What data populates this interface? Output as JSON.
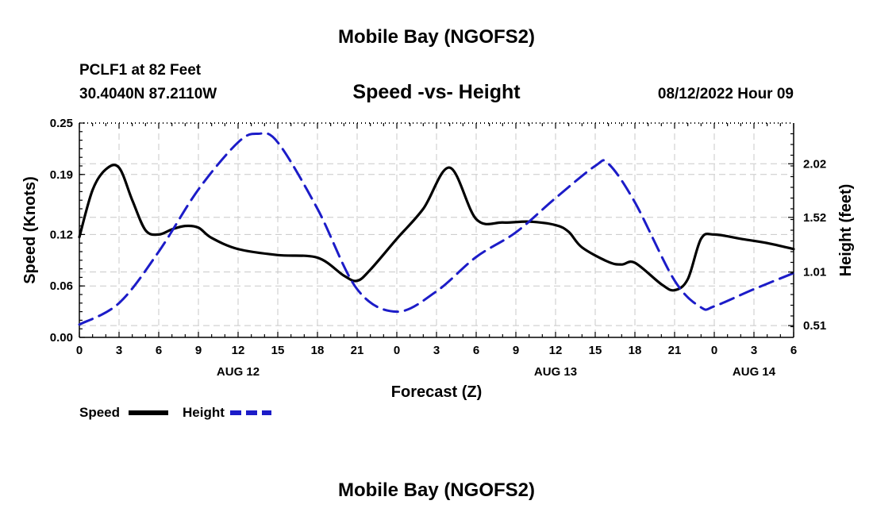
{
  "header": {
    "title_top": "Mobile Bay (NGOFS2)",
    "station": "PCLF1 at 82 Feet",
    "coords": "30.4040N  87.2110W",
    "chart_title": "Speed -vs- Height",
    "timestamp": "08/12/2022 Hour 09",
    "title_bottom": "Mobile Bay (NGOFS2)"
  },
  "legend": {
    "speed_label": "Speed",
    "height_label": "Height",
    "speed_color": "#000000",
    "height_color": "#1c1cc8"
  },
  "chart_data": {
    "type": "line",
    "title": "Speed -vs- Height",
    "xlabel": "Forecast (Z)",
    "ylabel": "Speed (Knots)",
    "y2label": "Height (feet)",
    "x_range_hours": [
      0,
      54
    ],
    "x_tick_hours": [
      0,
      3,
      6,
      9,
      12,
      15,
      18,
      21,
      24,
      27,
      30,
      33,
      36,
      39,
      42,
      45,
      48,
      51,
      54
    ],
    "x_tick_labels": [
      "0",
      "3",
      "6",
      "9",
      "12",
      "15",
      "18",
      "21",
      "0",
      "3",
      "6",
      "9",
      "12",
      "15",
      "18",
      "21",
      "0",
      "3",
      "6"
    ],
    "date_labels": [
      {
        "hour": 12,
        "label": "AUG 12"
      },
      {
        "hour": 36,
        "label": "AUG 13"
      },
      {
        "hour": 51,
        "label": "AUG 14"
      }
    ],
    "ylim": [
      0,
      0.25
    ],
    "y_ticks": [
      0.0,
      0.06,
      0.12,
      0.19,
      0.25
    ],
    "y_tick_labels": [
      "0.00",
      "0.06",
      "0.12",
      "0.19",
      "0.25"
    ],
    "y2lim": [
      0.4,
      2.4
    ],
    "y2_ticks": [
      0.51,
      1.01,
      1.52,
      2.02
    ],
    "y2_tick_labels": [
      "0.51",
      "1.01",
      "1.52",
      "2.02"
    ],
    "grid": true,
    "legend_position": "bottom-left",
    "series": [
      {
        "name": "Speed",
        "axis": "left",
        "color": "#000000",
        "style": "solid",
        "x": [
          0,
          1,
          2,
          3,
          4,
          5,
          6,
          7,
          8,
          9,
          10,
          12,
          15,
          18,
          20,
          21,
          22,
          24,
          26,
          28,
          30,
          32,
          34,
          36,
          37,
          38,
          40,
          41,
          42,
          44,
          45,
          46,
          47,
          48,
          50,
          52,
          54
        ],
        "values": [
          0.117,
          0.172,
          0.196,
          0.198,
          0.16,
          0.125,
          0.12,
          0.126,
          0.13,
          0.128,
          0.116,
          0.103,
          0.096,
          0.093,
          0.072,
          0.066,
          0.079,
          0.115,
          0.15,
          0.198,
          0.138,
          0.134,
          0.135,
          0.131,
          0.123,
          0.105,
          0.088,
          0.085,
          0.087,
          0.062,
          0.055,
          0.068,
          0.115,
          0.12,
          0.115,
          0.11,
          0.103
        ]
      },
      {
        "name": "Height",
        "axis": "right",
        "color": "#1c1cc8",
        "style": "dashed",
        "x": [
          0,
          3,
          6,
          9,
          12,
          13.5,
          15,
          18,
          21,
          24,
          27,
          30,
          33,
          36,
          39,
          40,
          42,
          45,
          47,
          48,
          51,
          54
        ],
        "values": [
          0.52,
          0.72,
          1.2,
          1.78,
          2.22,
          2.3,
          2.22,
          1.6,
          0.85,
          0.64,
          0.83,
          1.15,
          1.38,
          1.7,
          2.0,
          2.02,
          1.66,
          0.93,
          0.68,
          0.69,
          0.85,
          1.0
        ]
      }
    ]
  }
}
